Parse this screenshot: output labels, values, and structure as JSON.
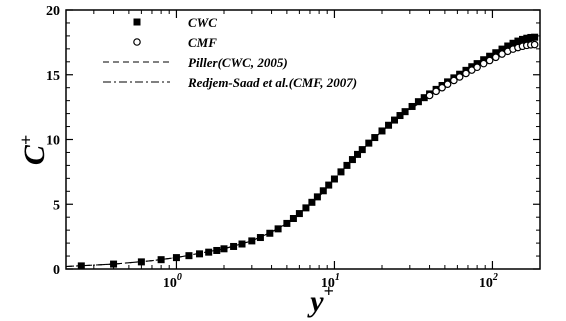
{
  "chart_data": {
    "type": "scatter",
    "title": "",
    "xlabel": "y",
    "xlabel_sup": "+",
    "ylabel": "C",
    "ylabel_sup": "+",
    "xscale": "log",
    "xlim": [
      0.2,
      200
    ],
    "ylim": [
      0,
      20
    ],
    "grid": false,
    "legend_position": "top-left",
    "x_ticks": [
      {
        "value": 1,
        "base": "10",
        "exp": "0"
      },
      {
        "value": 10,
        "base": "10",
        "exp": "1"
      },
      {
        "value": 100,
        "base": "10",
        "exp": "2"
      }
    ],
    "y_ticks": [
      {
        "value": 0,
        "label": "0"
      },
      {
        "value": 5,
        "label": "5"
      },
      {
        "value": 10,
        "label": "10"
      },
      {
        "value": 15,
        "label": "15"
      },
      {
        "value": 20,
        "label": "20"
      }
    ],
    "series": [
      {
        "name": "CWC",
        "marker": "filled-square",
        "x": [
          0.25,
          0.4,
          0.6,
          0.8,
          1.0,
          1.2,
          1.4,
          1.6,
          1.8,
          2.0,
          2.3,
          2.6,
          3.0,
          3.4,
          3.9,
          4.4,
          5.0,
          5.5,
          6.0,
          6.6,
          7.2,
          7.8,
          8.5,
          9.2,
          10,
          11,
          12,
          13,
          14,
          15,
          16.5,
          18,
          20,
          22,
          24,
          26,
          28,
          31,
          34,
          37,
          40,
          44,
          48,
          52,
          57,
          62,
          68,
          74,
          80,
          88,
          96,
          105,
          115,
          125,
          135,
          145,
          155,
          165,
          175,
          185
        ],
        "y": [
          0.24,
          0.38,
          0.55,
          0.72,
          0.88,
          1.03,
          1.17,
          1.3,
          1.43,
          1.56,
          1.74,
          1.93,
          2.17,
          2.43,
          2.76,
          3.1,
          3.52,
          3.9,
          4.28,
          4.72,
          5.15,
          5.57,
          6.04,
          6.48,
          6.95,
          7.5,
          8.0,
          8.45,
          8.85,
          9.22,
          9.72,
          10.15,
          10.66,
          11.1,
          11.5,
          11.85,
          12.15,
          12.55,
          12.92,
          13.23,
          13.52,
          13.87,
          14.17,
          14.45,
          14.76,
          15.04,
          15.34,
          15.62,
          15.86,
          16.16,
          16.43,
          16.7,
          16.98,
          17.22,
          17.43,
          17.6,
          17.73,
          17.82,
          17.88,
          17.9
        ]
      },
      {
        "name": "CMF",
        "marker": "open-circle",
        "x": [
          40,
          44,
          48,
          52,
          57,
          62,
          68,
          74,
          80,
          88,
          96,
          105,
          115,
          125,
          135,
          145,
          155,
          165,
          175,
          185
        ],
        "y": [
          13.4,
          13.72,
          14.0,
          14.27,
          14.56,
          14.83,
          15.1,
          15.36,
          15.58,
          15.86,
          16.1,
          16.35,
          16.6,
          16.81,
          16.98,
          17.1,
          17.2,
          17.27,
          17.31,
          17.33
        ]
      },
      {
        "name": "Piller(CWC, 2005)",
        "line": "dashed",
        "x": [
          0.2,
          0.4,
          0.7,
          1.0,
          1.5,
          2.0,
          3.0,
          4.0,
          5.0,
          6.0,
          7.0,
          8.0,
          10,
          12,
          15,
          20,
          25,
          30,
          40,
          50,
          70,
          100,
          130,
          160,
          185
        ],
        "y": [
          0.19,
          0.38,
          0.64,
          0.88,
          1.28,
          1.56,
          2.17,
          2.86,
          3.52,
          4.28,
          5.0,
          5.6,
          6.95,
          8.0,
          9.22,
          10.66,
          11.68,
          12.4,
          13.5,
          14.35,
          15.5,
          16.55,
          17.3,
          17.8,
          18.1
        ]
      },
      {
        "name": "Redjem-Saad et al.(CMF, 2007)",
        "line": "dash-dot",
        "x": [
          0.2,
          0.4,
          0.7,
          1.0,
          1.5,
          2.0,
          3.0,
          4.0,
          5.0,
          6.0,
          7.0,
          8.0,
          10,
          12,
          15,
          20,
          25,
          30,
          40,
          50,
          70,
          100,
          130,
          160,
          185
        ],
        "y": [
          0.19,
          0.38,
          0.64,
          0.88,
          1.28,
          1.56,
          2.17,
          2.86,
          3.52,
          4.28,
          5.0,
          5.6,
          6.95,
          8.0,
          9.22,
          10.66,
          11.6,
          12.3,
          13.35,
          14.15,
          15.25,
          16.3,
          17.0,
          17.5,
          17.7
        ]
      }
    ]
  }
}
